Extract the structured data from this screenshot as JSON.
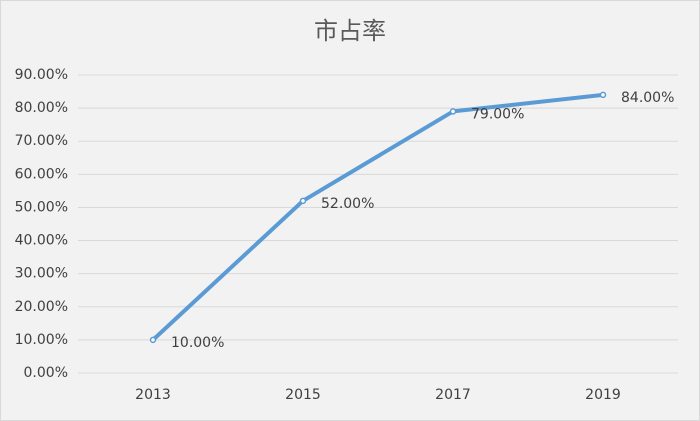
{
  "chart_data": {
    "type": "line",
    "title": "市占率",
    "categories": [
      "2013",
      "2015",
      "2017",
      "2019"
    ],
    "values": [
      10,
      52,
      79,
      84
    ],
    "value_labels": [
      "10.00%",
      "52.00%",
      "79.00%",
      "84.00%"
    ],
    "color": "#5b9bd5",
    "ylim": [
      0,
      90
    ],
    "yticks": [
      {
        "value": 0,
        "label": "0.00%"
      },
      {
        "value": 10,
        "label": "10.00%"
      },
      {
        "value": 20,
        "label": "20.00%"
      },
      {
        "value": 30,
        "label": "30.00%"
      },
      {
        "value": 40,
        "label": "40.00%"
      },
      {
        "value": 50,
        "label": "50.00%"
      },
      {
        "value": 60,
        "label": "60.00%"
      },
      {
        "value": 70,
        "label": "70.00%"
      },
      {
        "value": 80,
        "label": "80.00%"
      },
      {
        "value": 90,
        "label": "90.00%"
      }
    ],
    "grid": true
  }
}
